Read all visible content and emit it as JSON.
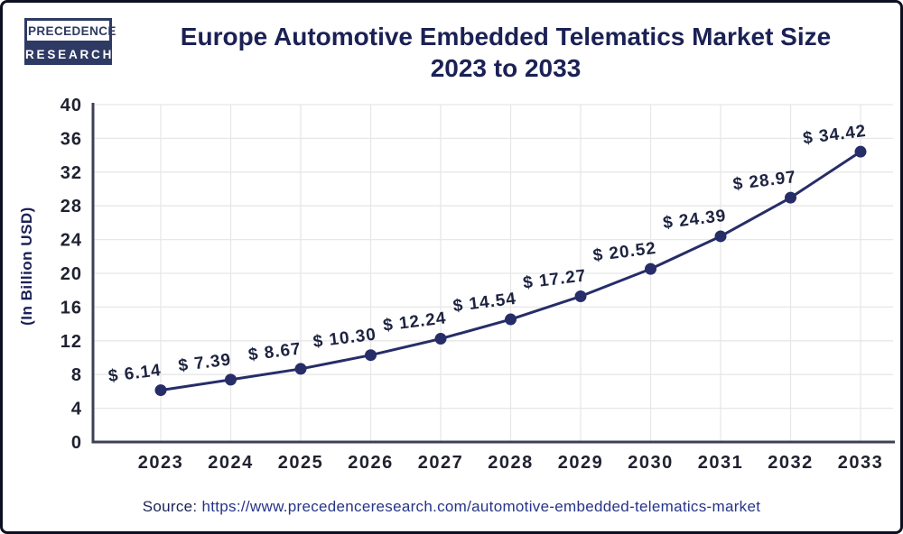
{
  "logo": {
    "line1": "PRECEDENCE",
    "line2": "RESEARCH"
  },
  "header": {
    "title_line1": "Europe Automotive Embedded Telematics Market Size",
    "title_line2": "2023 to 2033"
  },
  "source": {
    "label": "Source:",
    "url": "https://www.precedenceresearch.com/automotive-embedded-telematics-market"
  },
  "chart_data": {
    "type": "line",
    "title": "Europe Automotive Embedded Telematics Market Size 2023 to 2033",
    "categories": [
      "2023",
      "2024",
      "2025",
      "2026",
      "2027",
      "2028",
      "2029",
      "2030",
      "2031",
      "2032",
      "2033"
    ],
    "values": [
      6.14,
      7.39,
      8.67,
      10.3,
      12.24,
      14.54,
      17.27,
      20.52,
      24.39,
      28.97,
      34.42
    ],
    "point_labels": [
      "$ 6.14",
      "$ 7.39",
      "$ 8.67",
      "$ 10.30",
      "$ 12.24",
      "$ 14.54",
      "$ 17.27",
      "$ 20.52",
      "$ 24.39",
      "$ 28.97",
      "$ 34.42"
    ],
    "xlabel": "",
    "ylabel": "(In Billion USD)",
    "ylim": [
      0,
      40
    ],
    "ytick_step": 4,
    "ytick_labels": [
      "0",
      "4",
      "8",
      "12",
      "16",
      "20",
      "24",
      "28",
      "32",
      "36",
      "40"
    ],
    "grid": true,
    "legend": false,
    "colors": {
      "line": "#262d68",
      "marker": "#262d68",
      "point_label": "#1d2340",
      "axis": "#3e4155",
      "grid": "#e7e7e7",
      "tick_text": "#202230",
      "title": "#1b2155",
      "ylabel_text": "#1b2155"
    }
  }
}
